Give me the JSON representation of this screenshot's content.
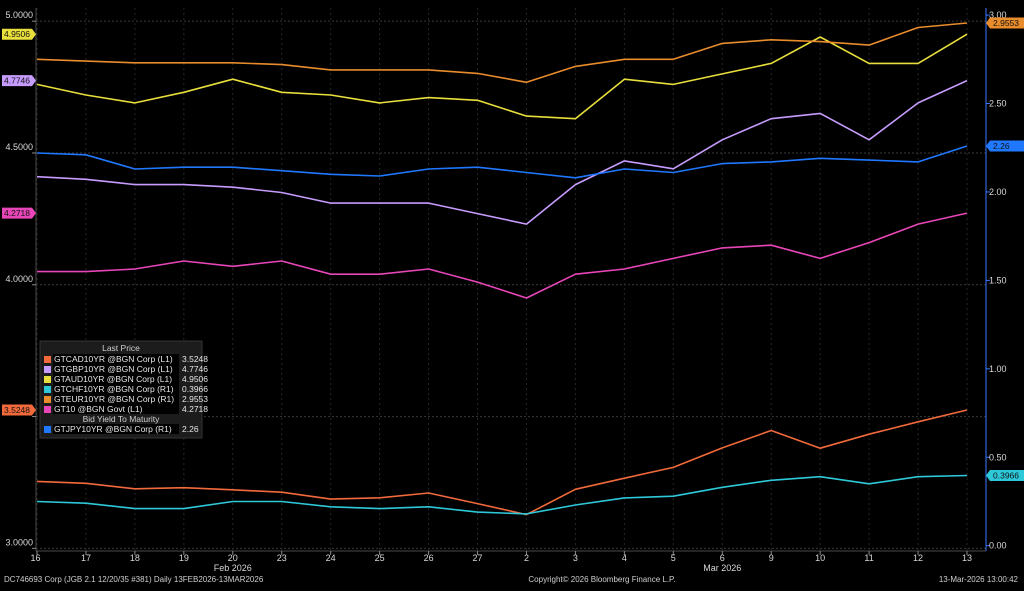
{
  "chart_data": {
    "type": "line",
    "x": [
      "16",
      "17",
      "18",
      "19",
      "20",
      "23",
      "24",
      "25",
      "26",
      "27",
      "2",
      "3",
      "4",
      "5",
      "6",
      "9",
      "10",
      "11",
      "12",
      "13"
    ],
    "month_labels": [
      "Feb 2026",
      "Mar 2026"
    ],
    "left_axis": {
      "ticks": [
        "5.0000",
        "4.5000",
        "4.0000",
        "3.5000",
        "3.0000"
      ],
      "ylim": [
        2.99,
        5.05
      ]
    },
    "right_axis": {
      "ticks": [
        "3.00",
        "2.50",
        "2.00",
        "1.50",
        "1.00",
        "0.50",
        "0.00"
      ],
      "ylim": [
        -0.03,
        3.04
      ]
    },
    "series": [
      {
        "name": "GTCAD10YR @BGN Corp (L1)",
        "last": "3.5248",
        "color": "#f26a3c",
        "axis": "left",
        "values": [
          3.254,
          3.247,
          3.226,
          3.23,
          3.222,
          3.213,
          3.187,
          3.192,
          3.21,
          3.17,
          3.128,
          3.224,
          3.266,
          3.307,
          3.381,
          3.447,
          3.38,
          3.433,
          3.48,
          3.5248
        ]
      },
      {
        "name": "GTGBP10YR @BGN Corp (L1)",
        "last": "4.7746",
        "color": "#c79cff",
        "axis": "left",
        "values": [
          4.41,
          4.4,
          4.38,
          4.38,
          4.37,
          4.35,
          4.31,
          4.31,
          4.31,
          4.27,
          4.23,
          4.38,
          4.47,
          4.44,
          4.55,
          4.63,
          4.65,
          4.55,
          4.69,
          4.7746
        ]
      },
      {
        "name": "GTAUD10YR @BGN Corp (L1)",
        "last": "4.9506",
        "color": "#e8df3c",
        "axis": "left",
        "values": [
          4.76,
          4.72,
          4.69,
          4.73,
          4.78,
          4.73,
          4.72,
          4.69,
          4.71,
          4.7,
          4.64,
          4.63,
          4.78,
          4.76,
          4.8,
          4.84,
          4.94,
          4.84,
          4.84,
          4.9506
        ]
      },
      {
        "name": "GTCHF10YR @BGN Corp (R1)",
        "last": "0.3966",
        "color": "#2ec9d9",
        "axis": "right",
        "values": [
          0.25,
          0.24,
          0.21,
          0.21,
          0.25,
          0.25,
          0.22,
          0.21,
          0.22,
          0.19,
          0.18,
          0.23,
          0.27,
          0.28,
          0.33,
          0.37,
          0.39,
          0.35,
          0.39,
          0.3966
        ]
      },
      {
        "name": "GTEUR10YR @BGN Corp (R1)",
        "last": "2.9553",
        "color": "#e88c2c",
        "axis": "right",
        "values": [
          2.75,
          2.74,
          2.73,
          2.73,
          2.73,
          2.72,
          2.69,
          2.69,
          2.69,
          2.67,
          2.62,
          2.71,
          2.75,
          2.75,
          2.84,
          2.86,
          2.85,
          2.83,
          2.93,
          2.9553
        ]
      },
      {
        "name": "GT10 @BGN Govt (L1)",
        "last": "4.2718",
        "color": "#e846b8",
        "axis": "left",
        "values": [
          4.05,
          4.05,
          4.06,
          4.09,
          4.07,
          4.09,
          4.04,
          4.04,
          4.06,
          4.01,
          3.95,
          4.04,
          4.06,
          4.1,
          4.14,
          4.15,
          4.1,
          4.16,
          4.23,
          4.2718
        ]
      },
      {
        "name": "GTJPY10YR @BGN Corp (R1)",
        "last": "2.26",
        "color": "#1f78ff",
        "axis": "right",
        "values": [
          2.22,
          2.21,
          2.13,
          2.14,
          2.14,
          2.12,
          2.1,
          2.09,
          2.13,
          2.14,
          2.11,
          2.08,
          2.13,
          2.11,
          2.16,
          2.17,
          2.19,
          2.18,
          2.17,
          2.26
        ]
      }
    ],
    "legend": {
      "header_left": "Last Price",
      "header_right": "Bid Yield To Maturity",
      "placement": "bottom-left"
    },
    "grid": true
  },
  "footer": {
    "left": "DC746693 Corp (JGB 2.1 12/20/35 #381) Daily 13FEB2026-13MAR2026",
    "center": "Copyright© 2026 Bloomberg Finance L.P.",
    "right": "13-Mar-2026 13:00:42"
  }
}
